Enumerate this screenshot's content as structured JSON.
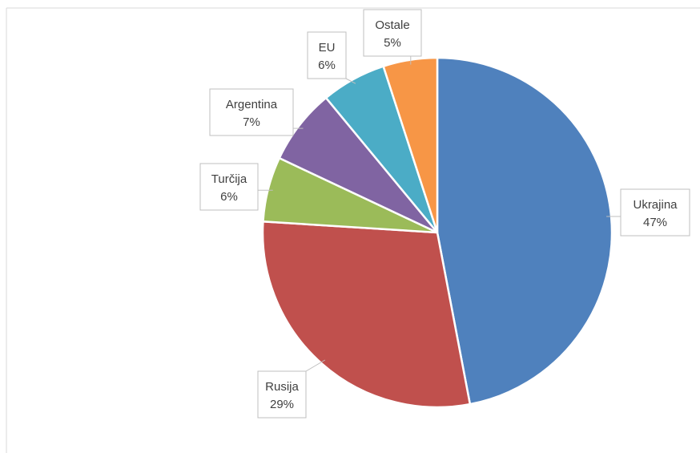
{
  "chart_data": {
    "type": "pie",
    "title": "",
    "start_angle_deg": 0,
    "direction": "clockwise",
    "slices": [
      {
        "label": "Ukrajina",
        "value": 47,
        "value_label": "47%",
        "color": "#4F81BD"
      },
      {
        "label": "Rusija",
        "value": 29,
        "value_label": "29%",
        "color": "#C0504D"
      },
      {
        "label": "Turčija",
        "value": 6,
        "value_label": "6%",
        "color": "#9BBB59"
      },
      {
        "label": "Argentina",
        "value": 7,
        "value_label": "7%",
        "color": "#8064A2"
      },
      {
        "label": "EU",
        "value": 6,
        "value_label": "6%",
        "color": "#4BACC6"
      },
      {
        "label": "Ostale",
        "value": 5,
        "value_label": "5%",
        "color": "#F79646"
      }
    ],
    "legend": "none",
    "data_labels": "callout"
  }
}
